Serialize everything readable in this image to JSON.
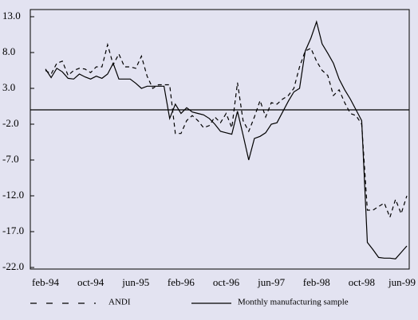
{
  "chart_data": {
    "type": "line",
    "categories": [
      "feb-94",
      null,
      null,
      null,
      null,
      null,
      null,
      null,
      "oct-94",
      null,
      null,
      null,
      null,
      null,
      null,
      null,
      "jun-95",
      null,
      null,
      null,
      null,
      null,
      null,
      null,
      "feb-96",
      null,
      null,
      null,
      null,
      null,
      null,
      null,
      "oct-96",
      null,
      null,
      null,
      null,
      null,
      null,
      null,
      "jun-97",
      null,
      null,
      null,
      null,
      null,
      null,
      null,
      "feb-98",
      null,
      null,
      null,
      null,
      null,
      null,
      null,
      "oct-98",
      null,
      null,
      null,
      null,
      null,
      null,
      null,
      "jun-99"
    ],
    "series": [
      {
        "name": "ANDI",
        "color": "#000000",
        "line_style": "dashed",
        "values": [
          5.5,
          5.0,
          6.5,
          6.8,
          4.8,
          5.5,
          5.8,
          5.7,
          5.2,
          6.0,
          6.0,
          9.1,
          6.3,
          7.8,
          6.0,
          6.0,
          5.8,
          7.5,
          4.7,
          3.0,
          3.5,
          3.5,
          3.5,
          -3.3,
          -3.3,
          -1.5,
          -0.8,
          -1.5,
          -2.5,
          -2.2,
          -1.0,
          -1.8,
          -0.5,
          -2.5,
          3.8,
          -1.5,
          -3.0,
          -1.0,
          1.3,
          -1.0,
          1.0,
          0.8,
          1.5,
          2.0,
          3.0,
          6.0,
          8.2,
          8.6,
          6.8,
          5.5,
          4.8,
          2.0,
          2.8,
          1.0,
          -0.5,
          -0.8,
          -2.0,
          -14.0,
          -14.0,
          -13.5,
          -13.0,
          -15.0,
          -12.5,
          -14.5,
          -12.0
        ]
      },
      {
        "name": "Monthly manufacturing sample",
        "color": "#000000",
        "line_style": "solid",
        "values": [
          5.7,
          4.5,
          5.8,
          5.3,
          4.4,
          4.3,
          5.0,
          4.6,
          4.3,
          4.7,
          4.4,
          5.0,
          6.5,
          4.3,
          4.3,
          4.3,
          3.7,
          3.0,
          3.3,
          3.3,
          3.3,
          3.3,
          -1.2,
          0.8,
          -0.5,
          0.3,
          -0.3,
          -0.5,
          -0.7,
          -1.2,
          -2.0,
          -3.0,
          -3.2,
          -3.4,
          -0.2,
          -3.5,
          -7.0,
          -4.0,
          -3.7,
          -3.2,
          -2.0,
          -1.8,
          -0.3,
          1.2,
          2.5,
          3.0,
          8.2,
          10.0,
          12.3,
          9.2,
          7.9,
          6.5,
          4.3,
          2.8,
          1.5,
          0.0,
          -1.5,
          -18.5,
          -19.5,
          -20.6,
          -20.7,
          -20.7,
          -20.8,
          -19.9,
          -19.0
        ]
      }
    ],
    "ylim": [
      -22,
      13
    ],
    "yticks": [
      {
        "value": -22,
        "label": "-22.0"
      },
      {
        "value": -17,
        "label": "-17.0"
      },
      {
        "value": -12,
        "label": "-12.0"
      },
      {
        "value": -7,
        "label": "-7.0"
      },
      {
        "value": -2,
        "label": "-2.0"
      },
      {
        "value": 3,
        "label": "3.0"
      },
      {
        "value": 8,
        "label": "8.0"
      },
      {
        "value": 13,
        "label": "13.0"
      }
    ],
    "zero_line": true,
    "legend": "bottom"
  }
}
